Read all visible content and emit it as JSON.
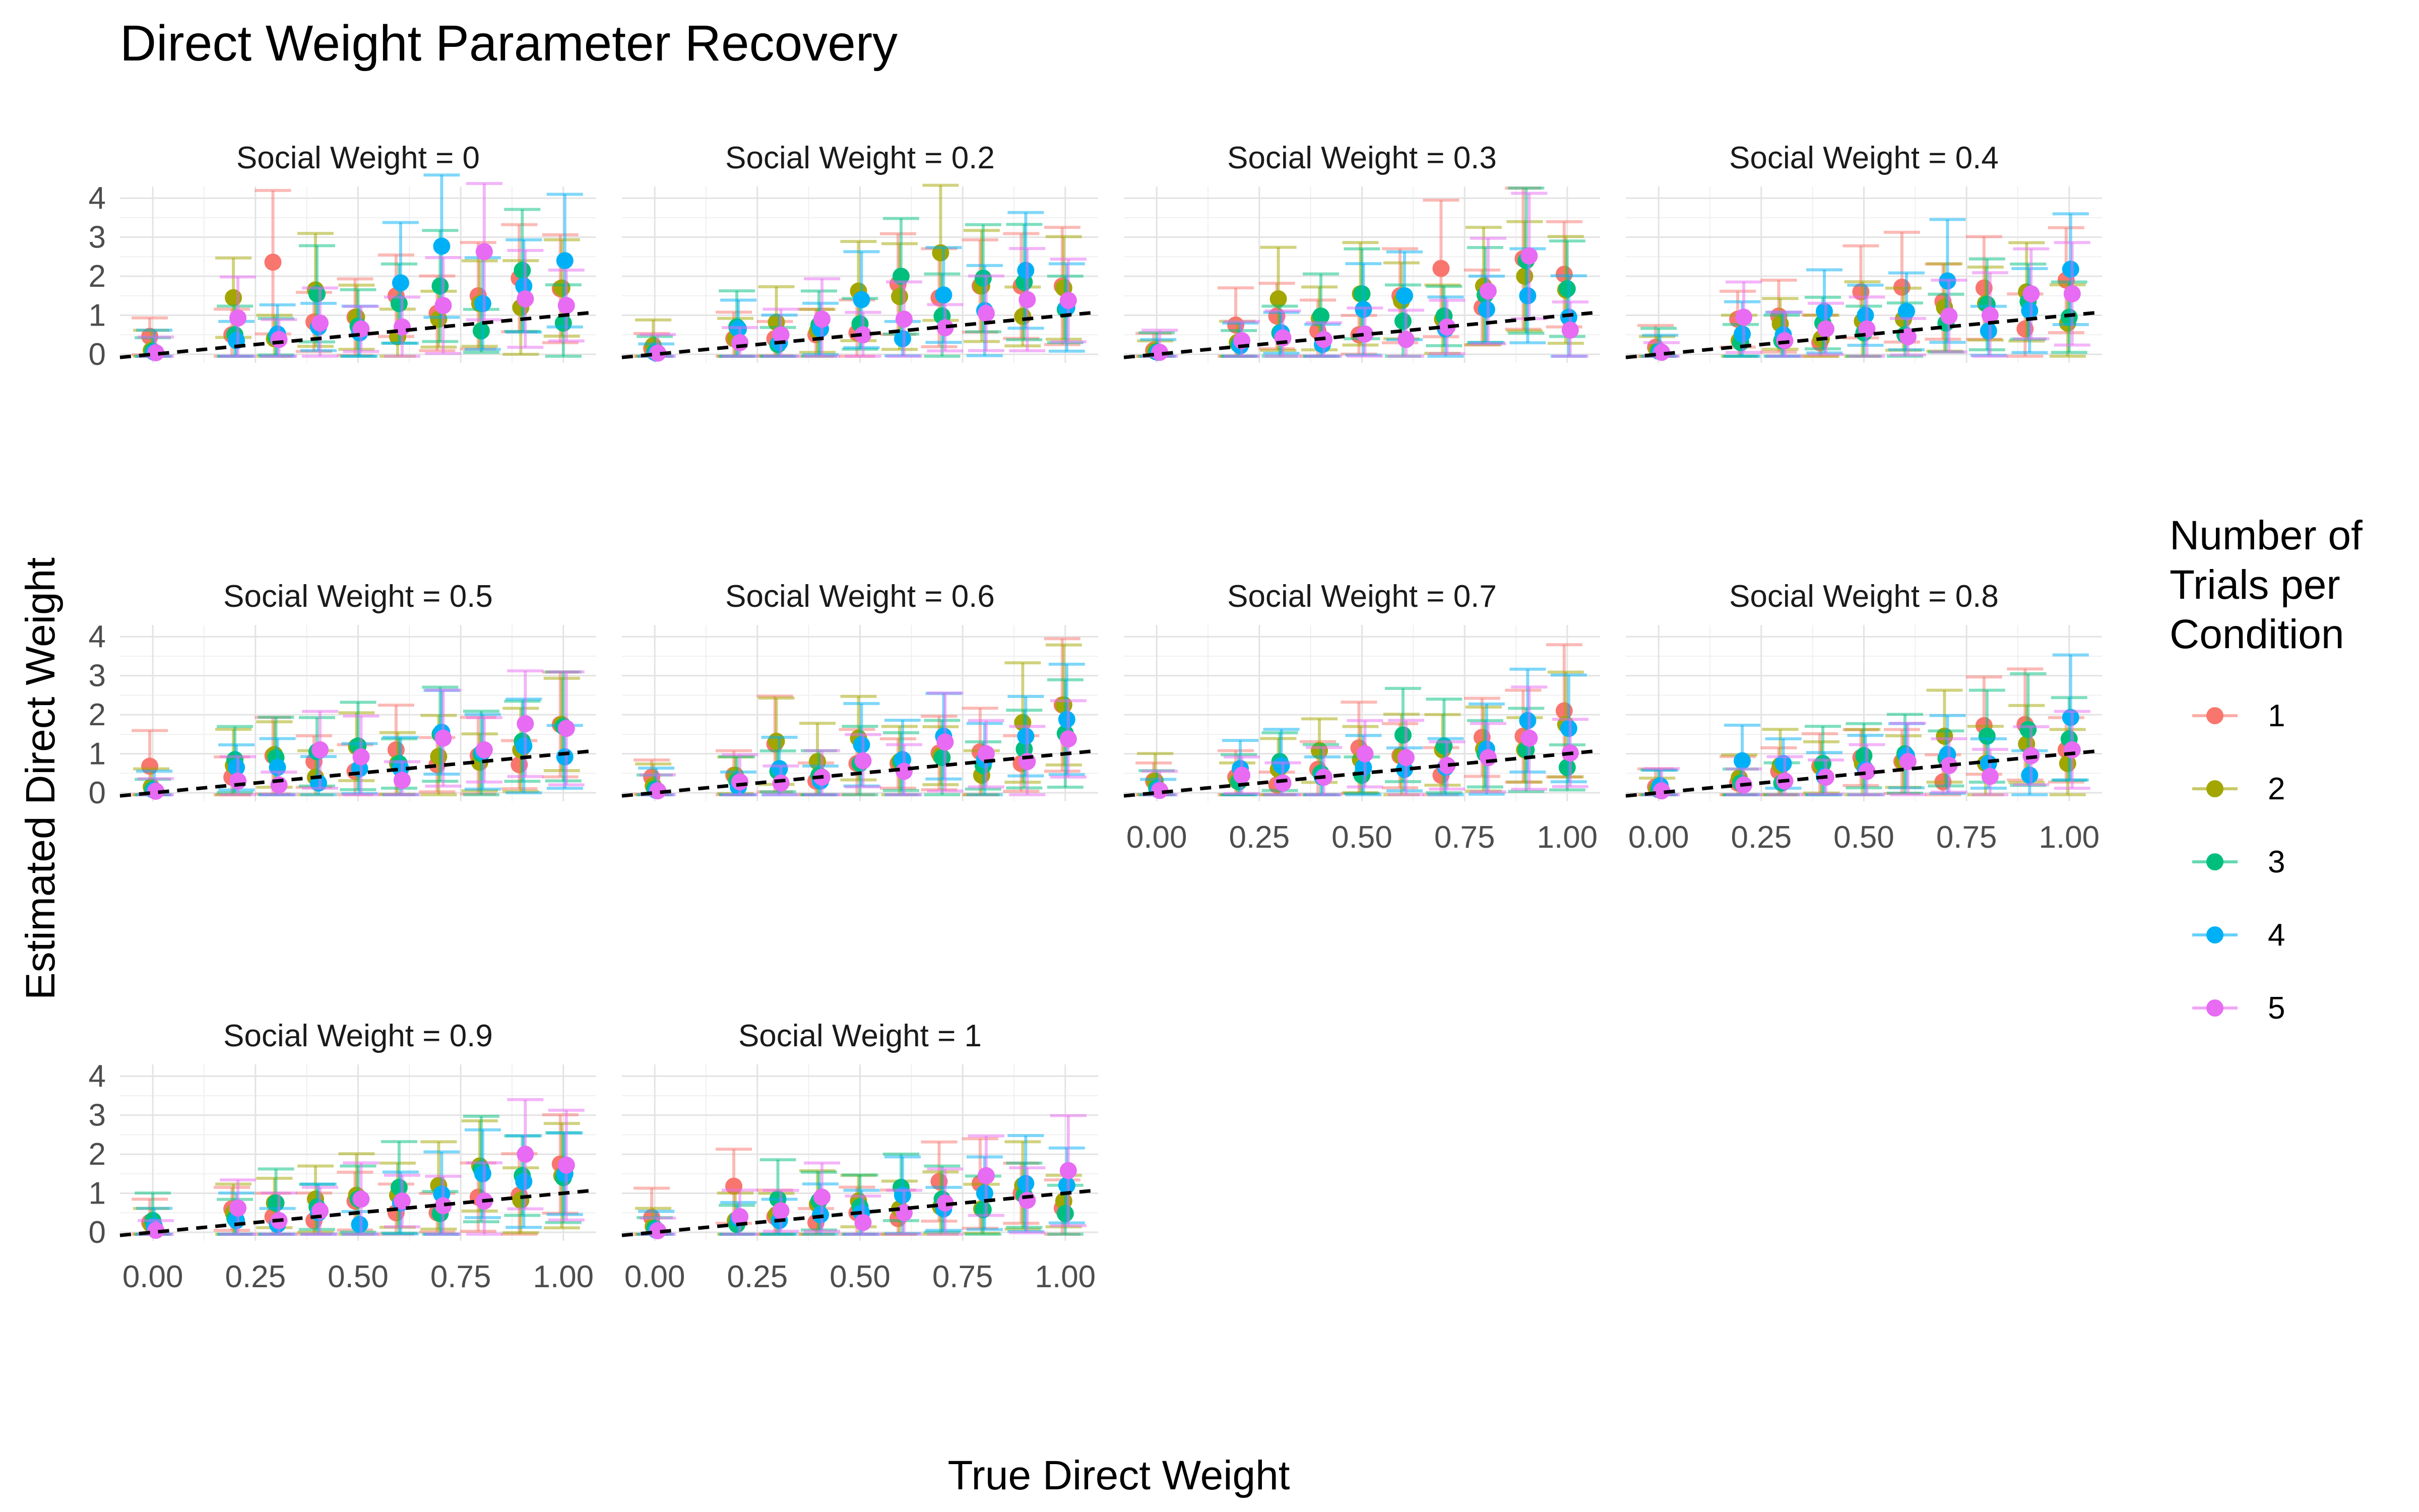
{
  "chart_data": {
    "type": "scatter",
    "title": "Direct Weight Parameter Recovery",
    "xlabel": "True Direct Weight",
    "ylabel": "Estimated Direct Weight",
    "xlim": [
      -0.08,
      1.08
    ],
    "ylim": [
      -0.22,
      4.3
    ],
    "x_ticks": [
      "0.00",
      "0.25",
      "0.50",
      "0.75",
      "1.00"
    ],
    "y_ticks": [
      "0",
      "1",
      "2",
      "3",
      "4"
    ],
    "grid": true,
    "reference_line": "identity (y = x), black dashed",
    "legend": {
      "title": "Number of\nTrials per\nCondition",
      "placement": "right",
      "entries": [
        {
          "label": "1",
          "color": "#F8766D"
        },
        {
          "label": "2",
          "color": "#A3A500"
        },
        {
          "label": "3",
          "color": "#00BF7D"
        },
        {
          "label": "4",
          "color": "#00B0F6"
        },
        {
          "label": "5",
          "color": "#E76BF3"
        }
      ]
    },
    "x": [
      0.0,
      0.2,
      0.3,
      0.4,
      0.5,
      0.6,
      0.7,
      0.8,
      0.9,
      1.0
    ],
    "panels": [
      {
        "label": "Social Weight = 0",
        "series": [
          {
            "name": "1",
            "values": [
              0.46,
              0.5,
              2.36,
              0.83,
              0.95,
              1.5,
              1.05,
              1.5,
              1.95,
              1.68
            ]
          },
          {
            "name": "2",
            "values": [
              0.1,
              1.45,
              0.4,
              1.65,
              0.95,
              0.45,
              0.9,
              1.3,
              1.2,
              1.7
            ]
          },
          {
            "name": "3",
            "values": [
              0.08,
              0.5,
              0.45,
              1.55,
              0.72,
              1.3,
              1.75,
              0.6,
              2.15,
              0.8
            ]
          },
          {
            "name": "4",
            "values": [
              0.05,
              0.35,
              0.52,
              0.7,
              0.55,
              1.83,
              2.77,
              1.3,
              1.75,
              2.4
            ]
          },
          {
            "name": "5",
            "values": [
              0.04,
              0.93,
              0.38,
              0.8,
              0.65,
              0.7,
              1.25,
              2.63,
              1.42,
              1.25
            ]
          }
        ]
      },
      {
        "label": "Social Weight = 0.2",
        "series": [
          {
            "name": "1",
            "values": [
              0.15,
              0.4,
              0.4,
              0.5,
              0.55,
              1.8,
              1.45,
              1.75,
              1.75,
              1.75
            ]
          },
          {
            "name": "2",
            "values": [
              0.22,
              0.4,
              0.82,
              0.6,
              1.62,
              1.48,
              2.6,
              1.75,
              0.97,
              1.7
            ]
          },
          {
            "name": "3",
            "values": [
              0.05,
              0.7,
              0.25,
              0.75,
              0.78,
              2.0,
              0.98,
              1.95,
              1.85,
              1.15
            ]
          },
          {
            "name": "4",
            "values": [
              0.03,
              0.65,
              0.3,
              0.65,
              1.4,
              0.4,
              1.52,
              1.12,
              2.15,
              1.2
            ]
          },
          {
            "name": "5",
            "values": [
              0.03,
              0.3,
              0.5,
              0.9,
              0.5,
              0.9,
              0.68,
              1.05,
              1.4,
              1.38
            ]
          }
        ]
      },
      {
        "label": "Social Weight = 0.3",
        "series": [
          {
            "name": "1",
            "values": [
              0.1,
              0.75,
              0.98,
              0.6,
              0.5,
              1.5,
              2.2,
              1.2,
              2.45,
              2.05
            ]
          },
          {
            "name": "2",
            "values": [
              0.08,
              0.3,
              1.42,
              0.92,
              1.55,
              1.37,
              0.9,
              1.75,
              2.0,
              1.65
            ]
          },
          {
            "name": "3",
            "values": [
              0.06,
              0.25,
              0.55,
              0.98,
              1.55,
              0.85,
              0.98,
              1.52,
              2.4,
              1.68
            ]
          },
          {
            "name": "4",
            "values": [
              0.05,
              0.22,
              0.55,
              0.25,
              1.15,
              1.5,
              0.65,
              1.15,
              1.5,
              0.95
            ]
          },
          {
            "name": "5",
            "values": [
              0.05,
              0.35,
              0.42,
              0.38,
              0.52,
              0.38,
              0.7,
              1.62,
              2.52,
              0.62
            ]
          }
        ]
      },
      {
        "label": "Social Weight = 0.4",
        "series": [
          {
            "name": "1",
            "values": [
              0.18,
              0.9,
              0.98,
              0.3,
              1.6,
              1.72,
              1.35,
              1.7,
              0.65,
              1.9
            ]
          },
          {
            "name": "2",
            "values": [
              0.1,
              0.35,
              0.78,
              0.4,
              0.85,
              0.9,
              1.2,
              1.3,
              1.6,
              0.8
            ]
          },
          {
            "name": "3",
            "values": [
              0.08,
              0.3,
              0.35,
              0.8,
              0.55,
              0.5,
              0.8,
              1.28,
              1.35,
              0.95
            ]
          },
          {
            "name": "4",
            "values": [
              0.07,
              0.52,
              0.5,
              1.1,
              1.0,
              1.1,
              1.88,
              0.6,
              1.12,
              2.18
            ]
          },
          {
            "name": "5",
            "values": [
              0.05,
              0.95,
              0.35,
              0.65,
              0.65,
              0.45,
              0.98,
              1.0,
              1.55,
              1.55
            ]
          }
        ]
      },
      {
        "label": "Social Weight = 0.5",
        "series": [
          {
            "name": "1",
            "values": [
              0.68,
              0.4,
              0.95,
              0.8,
              0.55,
              1.1,
              0.72,
              0.95,
              0.72,
              1.75
            ]
          },
          {
            "name": "2",
            "values": [
              0.15,
              0.7,
              0.98,
              0.4,
              1.18,
              0.75,
              0.93,
              0.78,
              1.1,
              1.75
            ]
          },
          {
            "name": "3",
            "values": [
              0.08,
              0.85,
              0.9,
              1.05,
              1.2,
              0.75,
              1.5,
              1.0,
              1.32,
              1.7
            ]
          },
          {
            "name": "4",
            "values": [
              0.06,
              0.65,
              0.65,
              0.25,
              0.62,
              0.62,
              1.55,
              1.05,
              1.2,
              0.92
            ]
          },
          {
            "name": "5",
            "values": [
              0.04,
              0.3,
              0.2,
              1.1,
              0.92,
              0.32,
              1.4,
              1.1,
              1.77,
              1.65
            ]
          }
        ]
      },
      {
        "label": "Social Weight = 0.6",
        "series": [
          {
            "name": "1",
            "values": [
              0.4,
              0.45,
              1.25,
              0.3,
              0.75,
              0.75,
              1.02,
              1.05,
              0.75,
              2.25
            ]
          },
          {
            "name": "2",
            "values": [
              0.18,
              0.45,
              1.32,
              0.8,
              1.4,
              0.8,
              0.95,
              0.45,
              1.8,
              2.25
            ]
          },
          {
            "name": "3",
            "values": [
              0.1,
              0.3,
              0.55,
              0.45,
              0.75,
              0.8,
              0.9,
              0.7,
              1.12,
              1.52
            ]
          },
          {
            "name": "4",
            "values": [
              0.06,
              0.15,
              0.62,
              0.3,
              1.23,
              0.85,
              1.45,
              0.85,
              1.45,
              1.88
            ]
          },
          {
            "name": "5",
            "values": [
              0.05,
              0.28,
              0.25,
              0.4,
              0.82,
              0.55,
              1.3,
              1.0,
              0.8,
              1.38
            ]
          }
        ]
      },
      {
        "label": "Social Weight = 0.7",
        "series": [
          {
            "name": "1",
            "values": [
              0.3,
              0.4,
              0.2,
              0.6,
              1.15,
              0.95,
              0.45,
              1.42,
              1.45,
              2.1
            ]
          },
          {
            "name": "2",
            "values": [
              0.3,
              0.3,
              0.6,
              1.08,
              0.85,
              0.95,
              1.1,
              1.12,
              1.1,
              1.75
            ]
          },
          {
            "name": "3",
            "values": [
              0.12,
              0.28,
              0.8,
              0.5,
              0.45,
              1.48,
              1.2,
              1.0,
              1.1,
              0.65
            ]
          },
          {
            "name": "4",
            "values": [
              0.08,
              0.62,
              0.7,
              0.4,
              0.65,
              0.6,
              0.65,
              1.12,
              1.85,
              1.65
            ]
          },
          {
            "name": "5",
            "values": [
              0.06,
              0.45,
              0.25,
              0.4,
              1.0,
              0.9,
              0.7,
              0.9,
              1.4,
              1.02
            ]
          }
        ]
      },
      {
        "label": "Social Weight = 0.8",
        "series": [
          {
            "name": "1",
            "values": [
              0.15,
              0.25,
              0.55,
              0.68,
              0.9,
              0.8,
              0.28,
              1.72,
              1.75,
              1.1
            ]
          },
          {
            "name": "2",
            "values": [
              0.1,
              0.38,
              0.7,
              0.65,
              0.75,
              0.8,
              1.45,
              0.75,
              1.25,
              0.75
            ]
          },
          {
            "name": "3",
            "values": [
              0.08,
              0.25,
              0.25,
              0.75,
              0.95,
              1.0,
              0.88,
              1.45,
              1.62,
              1.38
            ]
          },
          {
            "name": "4",
            "values": [
              0.18,
              0.82,
              0.75,
              0.42,
              0.6,
              0.95,
              0.98,
              0.75,
              0.45,
              1.93
            ]
          },
          {
            "name": "5",
            "values": [
              0.05,
              0.2,
              0.3,
              0.4,
              0.55,
              0.8,
              0.7,
              0.42,
              0.95,
              1.1
            ]
          }
        ]
      },
      {
        "label": "Social Weight = 0.9",
        "series": [
          {
            "name": "1",
            "values": [
              0.25,
              0.6,
              0.4,
              0.3,
              0.8,
              0.5,
              0.5,
              0.9,
              0.95,
              1.75
            ]
          },
          {
            "name": "2",
            "values": [
              0.2,
              0.5,
              0.75,
              0.85,
              0.95,
              0.95,
              1.2,
              1.7,
              0.82,
              1.45
            ]
          },
          {
            "name": "3",
            "values": [
              0.3,
              0.35,
              0.75,
              0.65,
              0.85,
              1.15,
              0.48,
              1.62,
              1.45,
              1.4
            ]
          },
          {
            "name": "4",
            "values": [
              0.15,
              0.3,
              0.2,
              0.5,
              0.2,
              0.75,
              0.98,
              1.5,
              1.3,
              1.5
            ]
          },
          {
            "name": "5",
            "values": [
              0.05,
              0.62,
              0.3,
              0.55,
              0.85,
              0.8,
              0.68,
              0.8,
              2.0,
              1.72
            ]
          }
        ]
      },
      {
        "label": "Social Weight = 1",
        "series": [
          {
            "name": "1",
            "values": [
              0.38,
              1.18,
              0.4,
              0.25,
              0.5,
              0.35,
              1.3,
              1.25,
              1.0,
              0.62
            ]
          },
          {
            "name": "2",
            "values": [
              0.15,
              0.3,
              0.45,
              0.72,
              0.8,
              0.6,
              0.65,
              0.6,
              1.2,
              0.8
            ]
          },
          {
            "name": "3",
            "values": [
              0.1,
              0.2,
              0.85,
              0.8,
              0.65,
              1.15,
              0.85,
              0.58,
              0.95,
              0.48
            ]
          },
          {
            "name": "4",
            "values": [
              0.05,
              0.35,
              0.3,
              0.45,
              0.5,
              0.95,
              0.6,
              1.0,
              1.25,
              1.2
            ]
          },
          {
            "name": "5",
            "values": [
              0.04,
              0.4,
              0.55,
              0.9,
              0.25,
              0.5,
              0.75,
              1.45,
              0.82,
              1.58
            ]
          }
        ]
      }
    ]
  }
}
